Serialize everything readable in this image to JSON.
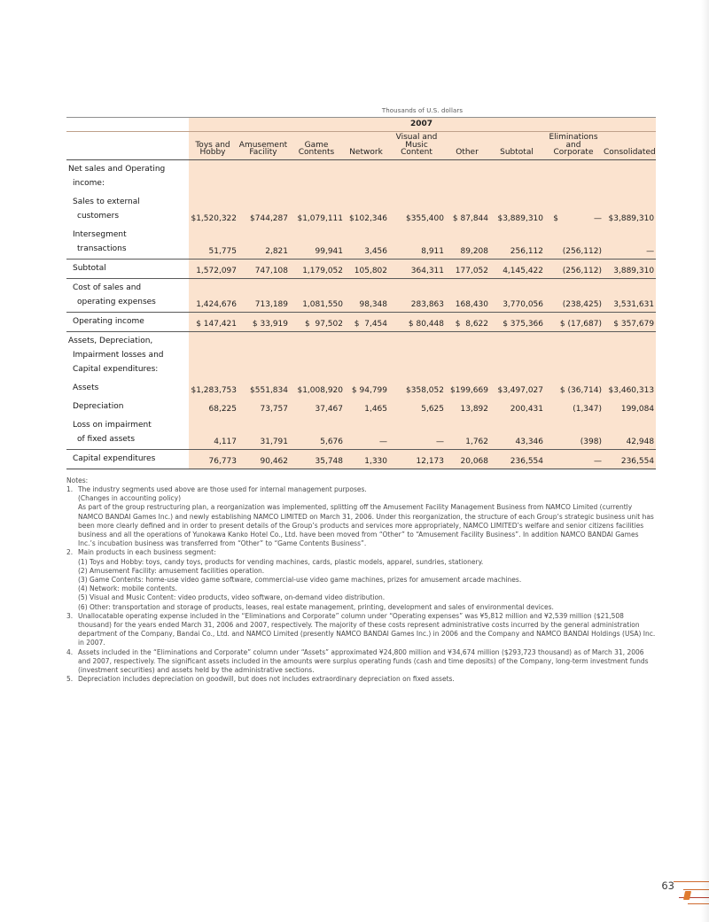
{
  "page": {
    "page_number": "63"
  },
  "table": {
    "units_label": "Thousands of U.S. dollars",
    "year": "2007",
    "columns": [
      {
        "slug": "toys-and-hobby",
        "label": "Toys and\nHobby"
      },
      {
        "slug": "amusement-facility",
        "label": "Amusement\nFacility"
      },
      {
        "slug": "game-contents",
        "label": "Game\nContents"
      },
      {
        "slug": "network",
        "label": "Network"
      },
      {
        "slug": "visual-and-music",
        "label": "Visual and\nMusic Content"
      },
      {
        "slug": "other",
        "label": "Other"
      },
      {
        "slug": "subtotal",
        "label": "Subtotal"
      },
      {
        "slug": "eliminations-corporate",
        "label": "Eliminations\nand Corporate"
      },
      {
        "slug": "consolidated",
        "label": "Consolidated"
      }
    ],
    "rows": [
      {
        "type": "group",
        "label_lines": [
          "Net sales and Operating",
          "income:"
        ],
        "values": []
      },
      {
        "type": "item",
        "label_lines": [
          "Sales to external",
          "customers"
        ],
        "values": [
          "$1,520,322",
          "$744,287",
          "$1,079,111",
          "$102,346",
          "$355,400",
          "$ 87,844",
          "$3,889,310",
          "$              —",
          "$3,889,310"
        ]
      },
      {
        "type": "item",
        "label_lines": [
          "Intersegment",
          "transactions"
        ],
        "values": [
          "51,775",
          "2,821",
          "99,941",
          "3,456",
          "8,911",
          "89,208",
          "256,112",
          "(256,112)",
          "—"
        ]
      },
      {
        "type": "subtotal",
        "label_lines": [
          "Subtotal"
        ],
        "values": [
          "1,572,097",
          "747,108",
          "1,179,052",
          "105,802",
          "364,311",
          "177,052",
          "4,145,422",
          "(256,112)",
          "3,889,310"
        ]
      },
      {
        "type": "item",
        "label_lines": [
          "Cost of sales and",
          "operating expenses"
        ],
        "values": [
          "1,424,676",
          "713,189",
          "1,081,550",
          "98,348",
          "283,863",
          "168,430",
          "3,770,056",
          "(238,425)",
          "3,531,631"
        ]
      },
      {
        "type": "total",
        "label_lines": [
          "Operating income"
        ],
        "values": [
          "$ 147,421",
          "$ 33,919",
          "$  97,502",
          "$  7,454",
          "$ 80,448",
          "$  8,622",
          "$ 375,366",
          "$ (17,687)",
          "$ 357,679"
        ]
      },
      {
        "type": "group",
        "label_lines": [
          "Assets, Depreciation,",
          "Impairment losses and",
          "Capital expenditures:"
        ],
        "values": []
      },
      {
        "type": "item",
        "label_lines": [
          "Assets"
        ],
        "values": [
          "$1,283,753",
          "$551,834",
          "$1,008,920",
          "$ 94,799",
          "$358,052",
          "$199,669",
          "$3,497,027",
          "$ (36,714)",
          "$3,460,313"
        ]
      },
      {
        "type": "item",
        "label_lines": [
          "Depreciation"
        ],
        "values": [
          "68,225",
          "73,757",
          "37,467",
          "1,465",
          "5,625",
          "13,892",
          "200,431",
          "(1,347)",
          "199,084"
        ]
      },
      {
        "type": "item",
        "label_lines": [
          "Loss on impairment",
          "of fixed assets"
        ],
        "values": [
          "4,117",
          "31,791",
          "5,676",
          "—",
          "—",
          "1,762",
          "43,346",
          "(398)",
          "42,948"
        ]
      },
      {
        "type": "last",
        "label_lines": [
          "Capital expenditures"
        ],
        "values": [
          "76,773",
          "90,462",
          "35,748",
          "1,330",
          "12,173",
          "20,068",
          "236,554",
          "—",
          "236,554"
        ]
      }
    ]
  },
  "notes": {
    "title": "Notes:",
    "items": [
      {
        "num": "1.",
        "paragraphs": [
          "The industry segments used above are those used for internal management purposes.",
          "(Changes in accounting policy)",
          "As part of the group restructuring plan, a reorganization was implemented, splitting off the Amusement Facility Management Business from NAMCO Limited (currently NAMCO BANDAI Games Inc.) and newly establishing NAMCO LIMITED on March 31, 2006. Under this reorganization, the structure of each Group’s strategic business unit has been more clearly defined and in order to present details of the Group’s products and services more appropriately, NAMCO LIMITED’s welfare and senior citizens facilities business and all the operations of Yunokawa Kanko Hotel Co., Ltd. have been moved from “Other” to “Amusement Facility Business”. In addition NAMCO BANDAI Games Inc.’s incubation business was transferred from “Other” to “Game Contents Business”."
        ]
      },
      {
        "num": "2.",
        "paragraphs": [
          "Main products in each business segment:",
          "(1) Toys and Hobby: toys, candy toys, products for vending machines, cards, plastic models, apparel, sundries, stationery.",
          "(2) Amusement Facility: amusement facilities operation.",
          "(3) Game Contents: home-use video game software, commercial-use video game machines, prizes for amusement arcade machines.",
          "(4) Network: mobile contents.",
          "(5) Visual and Music Content: video products, video software, on-demand video distribution.",
          "(6) Other: transportation and storage of products, leases, real estate management, printing, development and sales of environmental devices."
        ]
      },
      {
        "num": "3.",
        "paragraphs": [
          "Unallocatable operating expense included in the “Eliminations and Corporate” column under “Operating expenses” was ¥5,812 million and ¥2,539 million ($21,508 thousand) for the years ended March 31, 2006 and 2007, respectively. The majority of these costs represent administrative costs incurred by the general administration department of the Company, Bandai Co., Ltd. and NAMCO Limited (presently NAMCO BANDAI Games Inc.) in 2006 and the Company and NAMCO BANDAI Holdings (USA) Inc. in 2007."
        ]
      },
      {
        "num": "4.",
        "paragraphs": [
          "Assets included in the “Eliminations and Corporate” column under “Assets” approximated ¥24,800 million and ¥34,674 million ($293,723 thousand) as of March 31, 2006 and 2007, respectively. The significant assets included in the amounts were surplus operating funds (cash and time deposits) of the Company, long-term investment funds (investment securities) and assets held by the administrative sections."
        ]
      },
      {
        "num": "5.",
        "paragraphs": [
          "Depreciation includes depreciation on goodwill, but does not includes extraordinary depreciation on fixed assets."
        ]
      }
    ]
  }
}
